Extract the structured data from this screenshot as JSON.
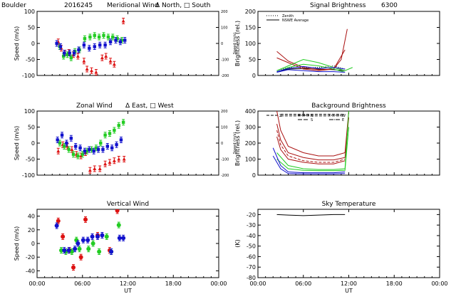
{
  "page": {
    "title_prefix": "Boulder",
    "date": "2016245"
  },
  "x_axis": {
    "label": "UT",
    "ticks": [
      "00:00",
      "06:00",
      "12:00",
      "18:00",
      "00:00"
    ]
  },
  "panels": {
    "meridional": {
      "title": "Meridional Wind",
      "legend_text": "Δ North, □ South",
      "ylabel": "Speed (m/s)",
      "ylim": [
        -100,
        100
      ],
      "yticks": [
        -100,
        -50,
        0,
        50,
        100
      ],
      "right_ylabel": "Speed (m/s)",
      "right_ylim": [
        -200,
        200
      ],
      "right_yticks": [
        -200,
        -100,
        0,
        100,
        200
      ],
      "xlim": [
        0,
        24
      ]
    },
    "zonal": {
      "title": "Zonal Wind",
      "legend_text": "Δ East, □ West",
      "ylabel": "Speed (m/s)",
      "ylim": [
        -100,
        100
      ],
      "yticks": [
        -100,
        -50,
        0,
        50,
        100
      ],
      "right_ylabel": "Speed (m/s)",
      "right_ylim": [
        -200,
        200
      ],
      "right_yticks": [
        -200,
        -100,
        0,
        100,
        200
      ],
      "xlim": [
        0,
        24
      ]
    },
    "vertical": {
      "title": "Vertical Wind",
      "ylabel": "Speed (m/s)",
      "ylim": [
        -50,
        50
      ],
      "yticks": [
        -40,
        -20,
        0,
        20,
        40
      ],
      "xlim": [
        0,
        24
      ]
    },
    "signal": {
      "title": "Signal Brightness",
      "wavelength": "6300",
      "ylabel": "Brightness (rel.)",
      "ylim": [
        0,
        200
      ],
      "yticks": [
        0,
        50,
        100,
        150,
        200
      ],
      "legend": [
        "Zenith",
        "NSWE Average"
      ],
      "xlim": [
        0,
        24
      ]
    },
    "background": {
      "title": "Background Brightness",
      "ylabel": "Brightness (rel.)",
      "ylim": [
        0,
        400
      ],
      "yticks": [
        0,
        100,
        200,
        300,
        400
      ],
      "legend": [
        "Z",
        "N",
        "S",
        "W",
        "E"
      ],
      "xlim": [
        0,
        24
      ]
    },
    "skytemp": {
      "title": "Sky Temperature",
      "ylabel": "(K)",
      "ylim": [
        -80,
        -15
      ],
      "yticks": [
        -80,
        -70,
        -60,
        -50,
        -40,
        -30,
        -20
      ],
      "xlim": [
        0,
        24
      ]
    }
  },
  "colors": {
    "red": "#dd1111",
    "green": "#22cc22",
    "blue": "#1111cc",
    "dark_red": "#aa1111",
    "black": "#000000"
  },
  "chart_data": [
    {
      "type": "scatter",
      "panel": "meridional",
      "title": "Meridional Wind",
      "ylabel": "Speed (m/s)",
      "xlim": [
        0,
        24
      ],
      "ylim": [
        -100,
        100
      ],
      "series": [
        {
          "name": "North",
          "color": "#dd1111",
          "marker": "triangle",
          "x": [
            2.8,
            3.2,
            3.7,
            4.2,
            4.8,
            5.4,
            6.2,
            6.6,
            7.2,
            7.8,
            8.6,
            9.1,
            9.7,
            10.2,
            11.4
          ],
          "y": [
            5,
            -15,
            -30,
            -28,
            -35,
            -40,
            -55,
            -80,
            -85,
            -90,
            -45,
            -40,
            -55,
            -65,
            70
          ]
        },
        {
          "name": "green",
          "color": "#22cc22",
          "marker": "square",
          "x": [
            3.0,
            3.5,
            4.0,
            4.5,
            5.0,
            5.6,
            6.3,
            7.0,
            7.6,
            8.2,
            8.8,
            9.4,
            10.0,
            10.6,
            11.2
          ],
          "y": [
            -10,
            -40,
            -35,
            -45,
            -25,
            -20,
            15,
            20,
            25,
            20,
            25,
            20,
            20,
            15,
            10
          ]
        },
        {
          "name": "South",
          "color": "#1111cc",
          "marker": "square",
          "x": [
            2.6,
            3.1,
            3.6,
            4.3,
            4.9,
            5.5,
            6.2,
            6.9,
            7.6,
            8.3,
            9.0,
            9.7,
            10.4,
            11.0,
            11.6
          ],
          "y": [
            0,
            -10,
            -30,
            -30,
            -30,
            -20,
            -5,
            -15,
            -10,
            -5,
            -5,
            5,
            10,
            5,
            10
          ]
        }
      ]
    },
    {
      "type": "scatter",
      "panel": "zonal",
      "title": "Zonal Wind",
      "ylabel": "Speed (m/s)",
      "xlim": [
        0,
        24
      ],
      "ylim": [
        -100,
        100
      ],
      "series": [
        {
          "name": "East",
          "color": "#dd1111",
          "marker": "triangle",
          "x": [
            2.8,
            3.4,
            4.0,
            4.6,
            5.2,
            5.8,
            6.4,
            7.0,
            7.6,
            8.3,
            9.0,
            9.6,
            10.2,
            10.8,
            11.5
          ],
          "y": [
            -25,
            -5,
            -10,
            -20,
            -35,
            -40,
            -30,
            -85,
            -80,
            -80,
            -65,
            -60,
            -55,
            -50,
            -50
          ]
        },
        {
          "name": "green",
          "color": "#22cc22",
          "marker": "square",
          "x": [
            3.0,
            3.6,
            4.2,
            4.8,
            5.4,
            6.0,
            6.6,
            7.2,
            7.8,
            8.4,
            9.0,
            9.6,
            10.2,
            10.8,
            11.4
          ],
          "y": [
            0,
            -10,
            -20,
            -35,
            -40,
            -35,
            -25,
            -20,
            -15,
            0,
            25,
            30,
            40,
            55,
            65
          ]
        },
        {
          "name": "West",
          "color": "#1111cc",
          "marker": "square",
          "x": [
            2.7,
            3.3,
            3.9,
            4.5,
            5.1,
            5.7,
            6.3,
            6.9,
            7.5,
            8.1,
            8.7,
            9.3,
            9.9,
            10.5,
            11.1
          ],
          "y": [
            10,
            25,
            0,
            15,
            -10,
            -15,
            -25,
            -20,
            -25,
            -20,
            -20,
            -10,
            -15,
            -5,
            10
          ]
        }
      ]
    },
    {
      "type": "scatter",
      "panel": "vertical",
      "title": "Vertical Wind",
      "ylabel": "Speed (m/s)",
      "xlim": [
        0,
        24
      ],
      "ylim": [
        -50,
        50
      ],
      "series": [
        {
          "name": "red",
          "color": "#dd1111",
          "marker": "circle",
          "x": [
            2.8,
            3.4,
            4.3,
            4.8,
            5.8,
            6.4,
            8.0,
            9.6,
            10.6
          ],
          "y": [
            33,
            10,
            -10,
            -35,
            -20,
            35,
            12,
            -10,
            48
          ]
        },
        {
          "name": "green",
          "color": "#22cc22",
          "marker": "circle",
          "x": [
            3.2,
            3.8,
            4.6,
            5.2,
            5.6,
            6.8,
            7.4,
            8.2,
            9.2,
            9.8,
            10.8
          ],
          "y": [
            -10,
            -12,
            -12,
            5,
            -8,
            -8,
            0,
            -12,
            10,
            -12,
            27
          ]
        },
        {
          "name": "blue",
          "color": "#1111cc",
          "marker": "circle",
          "x": [
            2.6,
            3.6,
            4.2,
            5.0,
            5.4,
            6.1,
            6.7,
            7.3,
            8.0,
            8.6,
            9.8,
            10.9,
            11.4
          ],
          "y": [
            26,
            -10,
            -10,
            -8,
            0,
            5,
            5,
            10,
            10,
            12,
            -12,
            8,
            8
          ]
        }
      ]
    },
    {
      "type": "line",
      "panel": "signal",
      "title": "Signal Brightness",
      "ylabel": "Brightness (rel.)",
      "xlim": [
        0,
        24
      ],
      "ylim": [
        0,
        200
      ],
      "series": [
        {
          "name": "Zenith",
          "color": "#000000",
          "dash": "1,2",
          "x": [
            2.5,
            4,
            6,
            8,
            10,
            11.5
          ],
          "y": [
            15,
            25,
            25,
            25,
            30,
            20
          ]
        },
        {
          "name": "NSWE Average",
          "color": "#000000",
          "dash": "",
          "x": [
            2.5,
            4,
            6,
            8,
            10,
            11.5
          ],
          "y": [
            10,
            20,
            22,
            20,
            18,
            15
          ]
        },
        {
          "name": "red1",
          "color": "#aa1111",
          "dash": "",
          "x": [
            2.5,
            4,
            6,
            8,
            10,
            11,
            11.8
          ],
          "y": [
            75,
            45,
            25,
            18,
            20,
            50,
            145
          ]
        },
        {
          "name": "red2",
          "color": "#aa1111",
          "dash": "",
          "x": [
            2.5,
            4,
            6,
            8,
            10,
            11.5
          ],
          "y": [
            55,
            40,
            20,
            15,
            20,
            80
          ]
        },
        {
          "name": "green1",
          "color": "#22cc22",
          "dash": "",
          "x": [
            2.5,
            4,
            6,
            8,
            10,
            11.5,
            12.5
          ],
          "y": [
            15,
            30,
            50,
            40,
            25,
            15,
            25
          ]
        },
        {
          "name": "green2",
          "color": "#22cc22",
          "dash": "",
          "x": [
            2.5,
            4,
            6,
            8,
            10,
            11.5
          ],
          "y": [
            10,
            25,
            35,
            30,
            20,
            10
          ]
        },
        {
          "name": "blue1",
          "color": "#1111cc",
          "dash": "",
          "x": [
            2.5,
            4,
            6,
            8,
            10,
            11.5
          ],
          "y": [
            12,
            22,
            28,
            22,
            25,
            20
          ]
        },
        {
          "name": "blue2",
          "color": "#1111cc",
          "dash": "",
          "x": [
            2.5,
            4,
            6,
            8,
            10,
            11.5
          ],
          "y": [
            10,
            18,
            15,
            12,
            12,
            10
          ]
        }
      ]
    },
    {
      "type": "line",
      "panel": "background",
      "title": "Background Brightness",
      "ylabel": "Brightness (rel.)",
      "xlim": [
        0,
        24
      ],
      "ylim": [
        0,
        400
      ],
      "series": [
        {
          "name": "Z",
          "color": "#000000",
          "dash": "4,2",
          "x": [
            3,
            4,
            6,
            8,
            10,
            11.5
          ],
          "y": [
            380,
            380,
            380,
            380,
            380,
            380
          ]
        },
        {
          "name": "N",
          "color": "#000000",
          "dash": "4,2",
          "x": [
            3,
            4,
            6,
            8,
            10,
            11.5
          ],
          "y": [
            370,
            370,
            370,
            370,
            370,
            370
          ]
        },
        {
          "name": "red1",
          "color": "#aa1111",
          "dash": "",
          "x": [
            2.5,
            3,
            4,
            6,
            8,
            10,
            11.5,
            12
          ],
          "y": [
            400,
            280,
            180,
            140,
            120,
            120,
            140,
            400
          ]
        },
        {
          "name": "red2",
          "color": "#aa1111",
          "dash": "",
          "x": [
            2.5,
            3,
            4,
            6,
            8,
            10,
            11.5,
            12
          ],
          "y": [
            320,
            220,
            140,
            110,
            95,
            95,
            110,
            360
          ]
        },
        {
          "name": "red3",
          "color": "#aa1111",
          "dash": "4,2",
          "x": [
            2.5,
            3,
            4,
            6,
            8,
            10,
            11.5
          ],
          "y": [
            280,
            190,
            120,
            90,
            80,
            80,
            100
          ]
        },
        {
          "name": "red4",
          "color": "#aa1111",
          "dash": "",
          "x": [
            2.5,
            3,
            4,
            6,
            8,
            10,
            11.5
          ],
          "y": [
            240,
            160,
            100,
            80,
            70,
            70,
            90
          ]
        },
        {
          "name": "green1",
          "color": "#22cc22",
          "dash": "",
          "x": [
            2.5,
            4,
            6,
            8,
            10,
            11.5,
            12
          ],
          "y": [
            140,
            60,
            40,
            35,
            35,
            40,
            400
          ]
        },
        {
          "name": "green2",
          "color": "#22cc22",
          "dash": "",
          "x": [
            2.5,
            4,
            6,
            8,
            10,
            11.5,
            12
          ],
          "y": [
            100,
            40,
            30,
            28,
            28,
            30,
            300
          ]
        },
        {
          "name": "blue1",
          "color": "#1111cc",
          "dash": "",
          "x": [
            2,
            3,
            4,
            6,
            8,
            10,
            11.5
          ],
          "y": [
            170,
            60,
            20,
            15,
            15,
            15,
            20
          ]
        },
        {
          "name": "blue2",
          "color": "#1111cc",
          "dash": "",
          "x": [
            2,
            3,
            4,
            6,
            8,
            10,
            11.5
          ],
          "y": [
            120,
            40,
            10,
            8,
            8,
            8,
            10
          ]
        }
      ]
    },
    {
      "type": "line",
      "panel": "skytemp",
      "title": "Sky Temperature",
      "ylabel": "(K)",
      "xlim": [
        0,
        24
      ],
      "ylim": [
        -80,
        -15
      ],
      "series": [
        {
          "name": "sky",
          "color": "#000000",
          "dash": "",
          "x": [
            2.5,
            4,
            6,
            8,
            10,
            11.5
          ],
          "y": [
            -20,
            -20.5,
            -21,
            -20.5,
            -20,
            -20
          ]
        }
      ]
    }
  ]
}
